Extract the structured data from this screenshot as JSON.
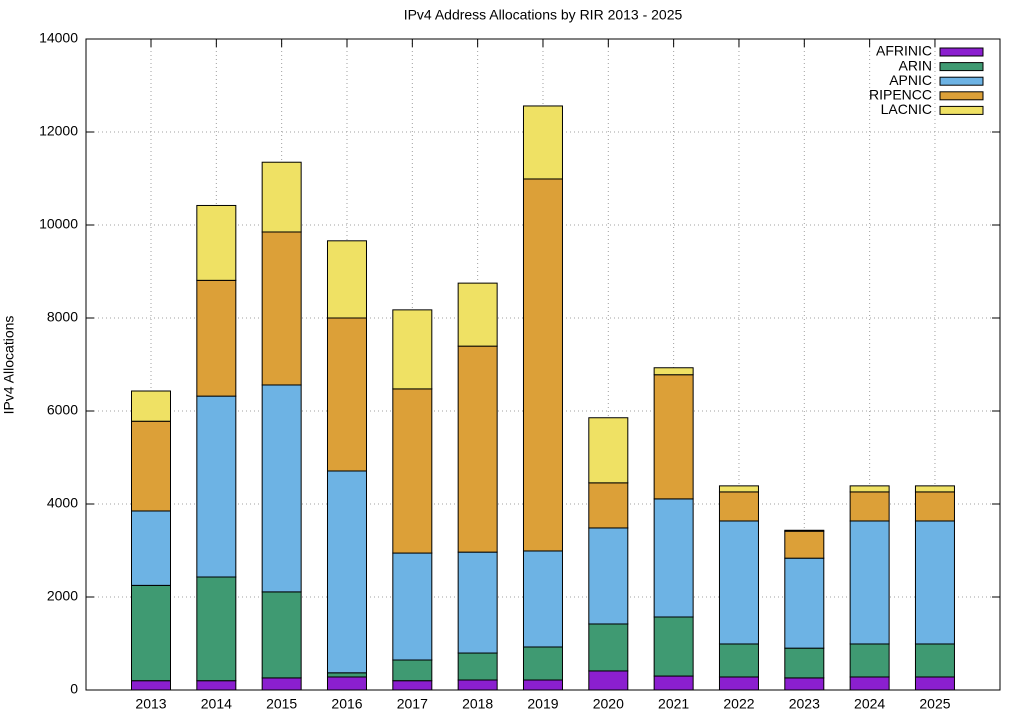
{
  "chart_data": {
    "type": "stacked_bar",
    "title": "IPv4 Address Allocations by RIR 2013 - 2025",
    "y_label": "IPv4 Allocations",
    "categories": [
      "2013",
      "2014",
      "2015",
      "2016",
      "2017",
      "2018",
      "2019",
      "2020",
      "2021",
      "2022",
      "2023",
      "2024",
      "2025"
    ],
    "series": [
      {
        "name": "AFRINIC",
        "color": "#8b1fcf",
        "values": [
          200,
          200,
          260,
          280,
          200,
          215,
          215,
          410,
          300,
          280,
          260,
          280,
          280
        ]
      },
      {
        "name": "ARIN",
        "color": "#3f9a72",
        "values": [
          2050,
          2230,
          1850,
          90,
          445,
          580,
          710,
          1010,
          1270,
          710,
          640,
          710,
          710
        ]
      },
      {
        "name": "APNIC",
        "color": "#6db3e4",
        "values": [
          1600,
          3890,
          4450,
          4340,
          2300,
          2170,
          2065,
          2065,
          2540,
          2645,
          1935,
          2645,
          2645
        ]
      },
      {
        "name": "RIPENCC",
        "color": "#dca038",
        "values": [
          1930,
          2490,
          3290,
          3290,
          3530,
          4430,
          8000,
          970,
          2670,
          625,
          580,
          625,
          625
        ]
      },
      {
        "name": "LACNIC",
        "color": "#efe164",
        "values": [
          650,
          1610,
          1500,
          1660,
          1700,
          1355,
          1570,
          1400,
          150,
          130,
          20,
          130,
          130
        ]
      }
    ],
    "ylim": [
      0,
      14000
    ],
    "yticks": [
      0,
      2000,
      4000,
      6000,
      8000,
      10000,
      12000,
      14000
    ],
    "grid": true,
    "legend": "top-right"
  }
}
